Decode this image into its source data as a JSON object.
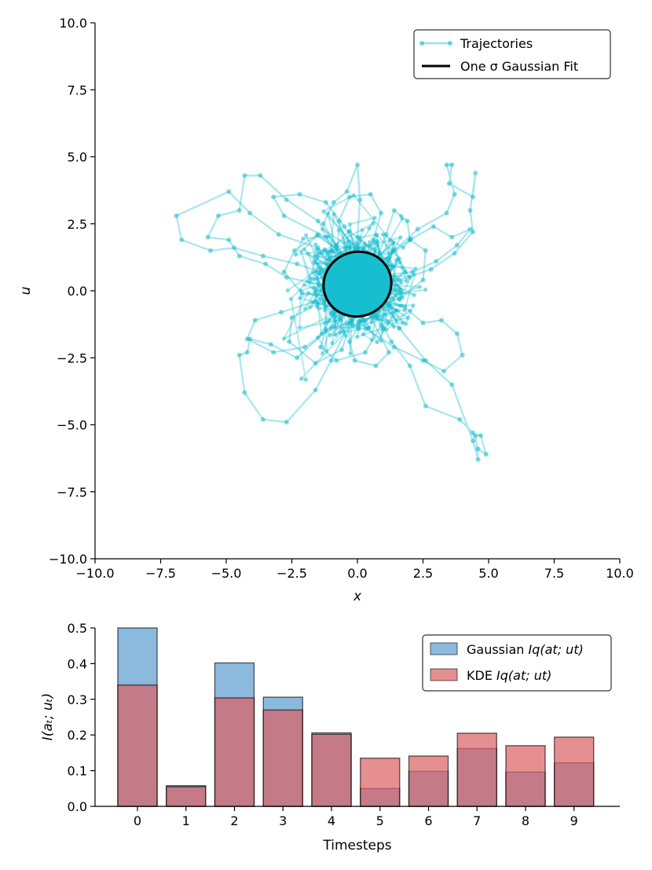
{
  "chart_data": [
    {
      "type": "scatter",
      "title": "",
      "xlabel": "x",
      "ylabel": "u",
      "xlim": [
        -10,
        10
      ],
      "ylim": [
        -10,
        10
      ],
      "xticks": [
        "−10.0",
        "−7.5",
        "−5.0",
        "−2.5",
        "0.0",
        "2.5",
        "5.0",
        "7.5",
        "10.0"
      ],
      "yticks": [
        "−10.0",
        "−7.5",
        "−5.0",
        "−2.5",
        "0.0",
        "2.5",
        "5.0",
        "7.5",
        "10.0"
      ],
      "legend": {
        "position": "top-right",
        "entries": [
          {
            "label": "Trajectories",
            "color": "#17BECF",
            "style": "line-marker"
          },
          {
            "label": "One σ Gaussian Fit",
            "color": "#000000",
            "style": "line"
          }
        ]
      },
      "ellipse_fit": {
        "center": [
          0.0,
          0.25
        ],
        "rx": 1.3,
        "ry": 1.2,
        "tilt_deg": -20
      },
      "trajectories": [
        [
          [
            -0.2,
            0.1
          ],
          [
            -1.5,
            1.6
          ],
          [
            -3.0,
            2.1
          ],
          [
            -4.1,
            2.9
          ],
          [
            -4.9,
            3.7
          ],
          [
            -6.9,
            2.8
          ],
          [
            -6.7,
            1.9
          ],
          [
            -5.6,
            1.5
          ],
          [
            -4.7,
            1.6
          ],
          [
            -3.6,
            1.3
          ],
          [
            -2.3,
            1.0
          ],
          [
            -1.1,
            0.6
          ]
        ],
        [
          [
            0.3,
            0.2
          ],
          [
            -1.5,
            2.6
          ],
          [
            -2.7,
            3.4
          ],
          [
            -3.7,
            4.3
          ],
          [
            -4.3,
            4.3
          ],
          [
            -4.5,
            3.0
          ],
          [
            -5.3,
            2.8
          ],
          [
            -5.7,
            2.0
          ],
          [
            -4.9,
            1.9
          ],
          [
            -4.5,
            1.3
          ],
          [
            -3.5,
            1.0
          ],
          [
            -2.7,
            0.5
          ],
          [
            -1.3,
            0.2
          ]
        ],
        [
          [
            0.1,
            -0.3
          ],
          [
            -1.2,
            -1.5
          ],
          [
            -2.3,
            -2.5
          ],
          [
            -3.3,
            -2.0
          ],
          [
            -4.1,
            -1.8
          ],
          [
            -4.2,
            -2.3
          ],
          [
            -4.5,
            -2.4
          ],
          [
            -4.3,
            -3.8
          ],
          [
            -3.6,
            -4.8
          ],
          [
            -2.7,
            -4.9
          ],
          [
            -1.6,
            -3.7
          ],
          [
            -1.0,
            -2.6
          ],
          [
            -0.3,
            -1.2
          ]
        ],
        [
          [
            0.5,
            -0.5
          ],
          [
            1.3,
            -1.9
          ],
          [
            2.0,
            -2.8
          ],
          [
            2.6,
            -4.3
          ],
          [
            3.9,
            -4.8
          ],
          [
            4.4,
            -5.3
          ],
          [
            4.6,
            -5.9
          ],
          [
            4.9,
            -6.1
          ],
          [
            4.7,
            -5.4
          ],
          [
            4.5,
            -5.4
          ],
          [
            4.6,
            -6.3
          ],
          [
            4.4,
            -5.6
          ],
          [
            3.6,
            -3.5
          ],
          [
            2.6,
            -2.6
          ],
          [
            1.6,
            -1.4
          ]
        ],
        [
          [
            0.4,
            0.6
          ],
          [
            1.4,
            1.5
          ],
          [
            2.3,
            2.3
          ],
          [
            3.4,
            2.9
          ],
          [
            3.7,
            3.6
          ],
          [
            3.4,
            4.7
          ],
          [
            3.6,
            4.7
          ],
          [
            3.5,
            4.0
          ],
          [
            4.4,
            3.5
          ],
          [
            4.5,
            4.4
          ],
          [
            4.3,
            3.0
          ],
          [
            4.4,
            2.2
          ],
          [
            3.7,
            1.4
          ],
          [
            2.8,
            0.8
          ],
          [
            1.6,
            0.4
          ]
        ],
        [
          [
            0.0,
            0.3
          ],
          [
            0.0,
            2.0
          ],
          [
            0.1,
            3.4
          ],
          [
            0.0,
            4.7
          ],
          [
            -0.4,
            3.7
          ],
          [
            -0.9,
            3.3
          ],
          [
            -1.3,
            2.5
          ],
          [
            -0.8,
            1.7
          ],
          [
            -0.2,
            1.0
          ]
        ],
        [
          [
            0.1,
            0.0
          ],
          [
            1.8,
            -0.6
          ],
          [
            2.5,
            -1.2
          ],
          [
            3.2,
            -1.1
          ],
          [
            3.8,
            -1.6
          ],
          [
            4.0,
            -2.4
          ],
          [
            3.3,
            -3.0
          ],
          [
            2.5,
            -2.6
          ],
          [
            1.4,
            -2.1
          ],
          [
            0.3,
            -1.4
          ]
        ],
        [
          [
            -0.1,
            0.2
          ],
          [
            -1.6,
            -0.4
          ],
          [
            -2.9,
            -0.8
          ],
          [
            -3.9,
            -1.1
          ],
          [
            -4.2,
            -1.8
          ],
          [
            -3.2,
            -2.3
          ],
          [
            -2.0,
            -2.1
          ],
          [
            -1.0,
            -1.4
          ],
          [
            -0.2,
            -0.7
          ]
        ],
        [
          [
            0.2,
            0.4
          ],
          [
            -1.2,
            2.0
          ],
          [
            -2.8,
            2.8
          ],
          [
            -3.2,
            3.5
          ],
          [
            -2.2,
            3.6
          ],
          [
            -1.2,
            3.3
          ],
          [
            -0.5,
            2.4
          ],
          [
            0.2,
            1.4
          ]
        ],
        [
          [
            0.3,
            0.1
          ],
          [
            1.1,
            2.1
          ],
          [
            1.4,
            3.0
          ],
          [
            1.9,
            2.6
          ],
          [
            2.0,
            1.9
          ],
          [
            2.6,
            1.5
          ],
          [
            2.5,
            0.4
          ],
          [
            1.6,
            -0.3
          ],
          [
            0.7,
            -0.6
          ]
        ],
        [
          [
            -0.3,
            -0.2
          ],
          [
            -1.1,
            -1.1
          ],
          [
            -1.4,
            -2.1
          ],
          [
            -0.8,
            -2.6
          ],
          [
            0.3,
            -2.3
          ],
          [
            0.9,
            -1.3
          ],
          [
            0.4,
            -0.5
          ]
        ],
        [
          [
            0.1,
            0.5
          ],
          [
            2.0,
            1.9
          ],
          [
            2.9,
            2.4
          ],
          [
            3.6,
            2.0
          ],
          [
            4.3,
            2.3
          ],
          [
            3.8,
            1.7
          ],
          [
            3.0,
            1.1
          ],
          [
            2.1,
            0.7
          ],
          [
            1.1,
            0.6
          ]
        ],
        [
          [
            -0.2,
            -0.3
          ],
          [
            -2.1,
            -0.1
          ],
          [
            -2.8,
            0.7
          ],
          [
            -2.4,
            1.5
          ],
          [
            -1.5,
            2.1
          ],
          [
            -0.6,
            1.4
          ],
          [
            -0.4,
            0.6
          ]
        ],
        [
          [
            0.2,
            -0.4
          ],
          [
            1.2,
            -2.3
          ],
          [
            0.7,
            -2.8
          ],
          [
            -0.1,
            -2.6
          ],
          [
            -0.3,
            -1.9
          ],
          [
            0.2,
            -1.1
          ]
        ],
        [
          [
            0.0,
            0.0
          ],
          [
            -0.7,
            2.6
          ],
          [
            -0.3,
            3.5
          ],
          [
            0.5,
            3.6
          ],
          [
            0.9,
            2.9
          ],
          [
            0.6,
            1.9
          ],
          [
            0.4,
            0.9
          ]
        ],
        [
          [
            -0.4,
            0.1
          ],
          [
            -2.5,
            -1.0
          ],
          [
            -2.6,
            -1.9
          ],
          [
            -1.6,
            -2.7
          ],
          [
            -0.6,
            -2.2
          ],
          [
            -0.2,
            -1.1
          ]
        ]
      ]
    },
    {
      "type": "bar",
      "title": "",
      "xlabel": "Timesteps",
      "ylabel": "I(aₜ; uₜ)",
      "categories": [
        "0",
        "1",
        "2",
        "3",
        "4",
        "5",
        "6",
        "7",
        "8",
        "9"
      ],
      "ylim": [
        0,
        0.5
      ],
      "yticks": [
        "0.0",
        "0.1",
        "0.2",
        "0.3",
        "0.4",
        "0.5"
      ],
      "legend": {
        "position": "top-right",
        "entries": [
          {
            "label_main": "Gaussian ",
            "label_math": "Iq(at; ut)",
            "color": "#5B9BD0"
          },
          {
            "label_main": "KDE ",
            "label_math": "Iq(at; ut)",
            "color": "#DC5F63"
          }
        ]
      },
      "series": [
        {
          "name": "Gaussian Iq(at; ut)",
          "color": "#5B9BD0",
          "values": [
            0.5,
            0.058,
            0.402,
            0.306,
            0.206,
            0.05,
            0.098,
            0.162,
            0.096,
            0.122
          ]
        },
        {
          "name": "KDE Iq(at; ut)",
          "color": "#DC5F63",
          "values": [
            0.34,
            0.055,
            0.304,
            0.27,
            0.202,
            0.135,
            0.141,
            0.205,
            0.17,
            0.194
          ]
        }
      ]
    }
  ]
}
